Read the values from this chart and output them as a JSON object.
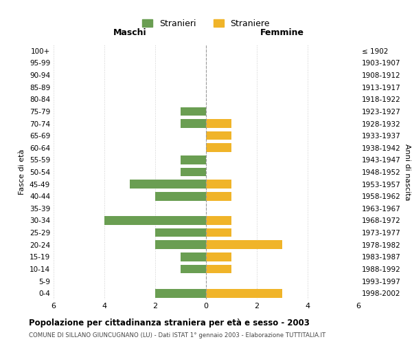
{
  "age_groups": [
    "100+",
    "95-99",
    "90-94",
    "85-89",
    "80-84",
    "75-79",
    "70-74",
    "65-69",
    "60-64",
    "55-59",
    "50-54",
    "45-49",
    "40-44",
    "35-39",
    "30-34",
    "25-29",
    "20-24",
    "15-19",
    "10-14",
    "5-9",
    "0-4"
  ],
  "birth_years": [
    "≤ 1902",
    "1903-1907",
    "1908-1912",
    "1913-1917",
    "1918-1922",
    "1923-1927",
    "1928-1932",
    "1933-1937",
    "1938-1942",
    "1943-1947",
    "1948-1952",
    "1953-1957",
    "1958-1962",
    "1963-1967",
    "1968-1972",
    "1973-1977",
    "1978-1982",
    "1983-1987",
    "1988-1992",
    "1993-1997",
    "1998-2002"
  ],
  "males": [
    0,
    0,
    0,
    0,
    0,
    1,
    1,
    0,
    0,
    1,
    1,
    3,
    2,
    0,
    4,
    2,
    2,
    1,
    1,
    0,
    2
  ],
  "females": [
    0,
    0,
    0,
    0,
    0,
    0,
    1,
    1,
    1,
    0,
    0,
    1,
    1,
    0,
    1,
    1,
    3,
    1,
    1,
    0,
    3
  ],
  "male_color": "#6a9e52",
  "female_color": "#f0b429",
  "title": "Popolazione per cittadinanza straniera per età e sesso - 2003",
  "subtitle": "COMUNE DI SILLANO GIUNCUGNANO (LU) - Dati ISTAT 1° gennaio 2003 - Elaborazione TUTTITALIA.IT",
  "xlabel_left": "Maschi",
  "xlabel_right": "Femmine",
  "ylabel_left": "Fasce di età",
  "ylabel_right": "Anni di nascita",
  "legend_males": "Stranieri",
  "legend_females": "Straniere",
  "xlim": 6,
  "background_color": "#ffffff",
  "grid_color": "#cccccc"
}
